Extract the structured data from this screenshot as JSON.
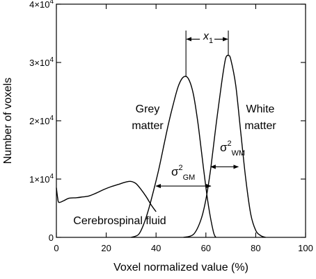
{
  "chart_data": {
    "type": "line",
    "xlabel": "Voxel normalized value (%)",
    "ylabel": "Number of voxels",
    "xlim": [
      0,
      100
    ],
    "ylim": [
      0,
      40000
    ],
    "x_ticks": [
      {
        "value": 0,
        "label": "0"
      },
      {
        "value": 20,
        "label": "20"
      },
      {
        "value": 40,
        "label": "40"
      },
      {
        "value": 60,
        "label": "60"
      },
      {
        "value": 80,
        "label": "80"
      },
      {
        "value": 100,
        "label": "100"
      }
    ],
    "y_ticks": [
      {
        "value": 0,
        "mant": "0",
        "exp": ""
      },
      {
        "value": 10000,
        "mant": "1×10",
        "exp": "4"
      },
      {
        "value": 20000,
        "mant": "2×10",
        "exp": "4"
      },
      {
        "value": 30000,
        "mant": "3×10",
        "exp": "4"
      },
      {
        "value": 40000,
        "mant": "4×10",
        "exp": "4"
      }
    ],
    "series": [
      {
        "name": "Cerebrospinal fluid",
        "x": [
          0,
          0.5,
          1,
          3,
          5,
          8,
          10,
          13,
          16,
          19,
          22,
          25,
          28,
          30,
          32,
          34,
          36,
          38,
          40
        ],
        "y": [
          8500,
          6800,
          6000,
          6300,
          6700,
          6800,
          6900,
          7100,
          7600,
          8200,
          8700,
          9100,
          9500,
          9600,
          9200,
          8200,
          7000,
          5600,
          4400
        ]
      },
      {
        "name": "Grey matter",
        "x": [
          30,
          33,
          35,
          37,
          39,
          41,
          43,
          45,
          47,
          49,
          51,
          53,
          55,
          57,
          59,
          61,
          63,
          64
        ],
        "y": [
          0,
          500,
          2200,
          4800,
          8000,
          11500,
          15500,
          19500,
          23000,
          26000,
          27500,
          27200,
          24500,
          19000,
          12000,
          5500,
          1000,
          0
        ]
      },
      {
        "name": "White matter",
        "x": [
          51,
          55,
          58,
          60,
          62,
          64,
          66,
          67,
          68,
          69,
          70,
          72,
          74,
          76,
          78,
          80,
          82,
          84
        ],
        "y": [
          0,
          500,
          3000,
          6500,
          12000,
          19000,
          25500,
          28500,
          30800,
          31200,
          30500,
          26000,
          18000,
          10000,
          4000,
          1200,
          300,
          0
        ]
      }
    ],
    "annotations": {
      "gm_label_1": "Grey",
      "gm_label_2": "matter",
      "wm_label_1": "White",
      "wm_label_2": "matter",
      "csf_label": "Cerebrospinal fluid",
      "x1_label": "x",
      "x1_sub": "1",
      "sigma_gm": "σ",
      "sigma_gm_sup": "2",
      "sigma_gm_sub": "GM",
      "sigma_wm": "σ",
      "sigma_wm_sup": "2",
      "sigma_wm_sub": "WM",
      "gm_peak_x": 52,
      "wm_peak_x": 69,
      "sigma_gm_range": [
        40,
        62
      ],
      "sigma_wm_range": [
        62,
        73
      ],
      "sigma_gm_y": 8800,
      "sigma_wm_y": 12100,
      "x1_y": 34000
    },
    "grid": false
  }
}
